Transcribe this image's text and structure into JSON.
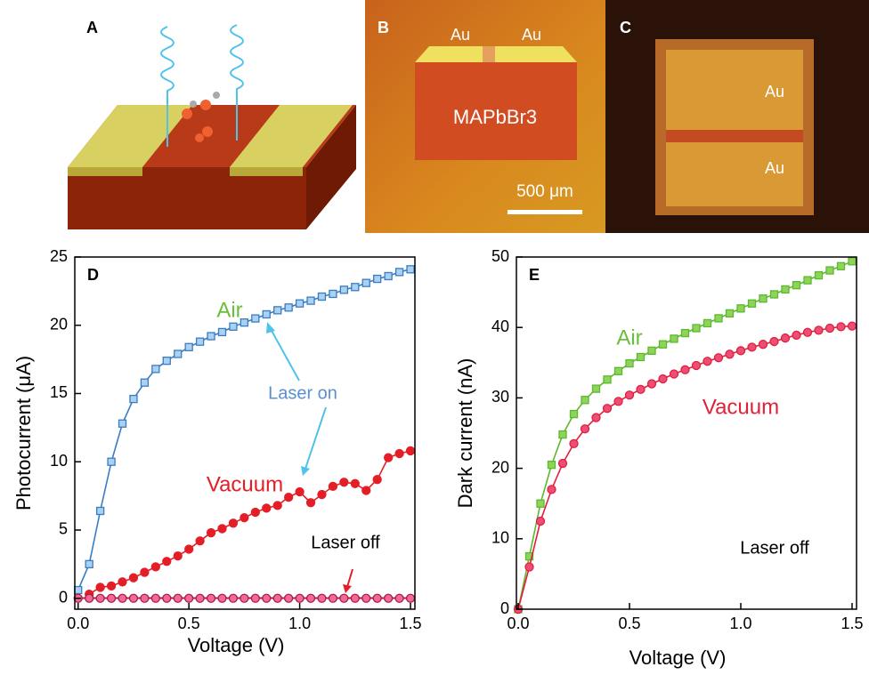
{
  "panels": [
    {
      "label": "A"
    },
    {
      "label": "B",
      "texts": [
        "Au",
        "Au",
        "MAPbBr3",
        "500 μm"
      ]
    },
    {
      "label": "C",
      "texts": [
        "Au",
        "Au"
      ]
    }
  ],
  "chart_data": [
    {
      "type": "line",
      "label": "D",
      "xlabel": "Voltage (V)",
      "ylabel": "Photocurrent (μA)",
      "x": [
        0,
        0.05,
        0.1,
        0.15,
        0.2,
        0.25,
        0.3,
        0.35,
        0.4,
        0.45,
        0.5,
        0.55,
        0.6,
        0.65,
        0.7,
        0.75,
        0.8,
        0.85,
        0.9,
        0.95,
        1,
        1.05,
        1.1,
        1.15,
        1.2,
        1.25,
        1.3,
        1.35,
        1.4,
        1.45,
        1.5
      ],
      "xlim": [
        -0.015,
        1.52
      ],
      "xticks": [
        {
          "value": 0,
          "label": "0.0"
        },
        {
          "value": 0.5,
          "label": "0.5"
        },
        {
          "value": 1,
          "label": "1.0"
        },
        {
          "value": 1.5,
          "label": "1.5"
        }
      ],
      "ylim": [
        -0.8,
        25
      ],
      "yticks": [
        0,
        5,
        10,
        15,
        20,
        25
      ],
      "series": [
        {
          "name": "Air",
          "color": "#3a7cc4",
          "fill": "#a9d2f0",
          "marker": "square",
          "values": [
            0.6,
            2.5,
            6.4,
            10,
            12.8,
            14.6,
            15.8,
            16.8,
            17.4,
            17.9,
            18.4,
            18.8,
            19.2,
            19.5,
            19.9,
            20.2,
            20.5,
            20.8,
            21.1,
            21.3,
            21.6,
            21.8,
            22.1,
            22.3,
            22.6,
            22.8,
            23.1,
            23.4,
            23.6,
            23.9,
            24.1
          ]
        },
        {
          "name": "Vacuum",
          "color": "#e41e26",
          "fill": "#e41e26",
          "marker": "circle",
          "values": [
            null,
            0.3,
            0.8,
            0.9,
            1.2,
            1.5,
            1.9,
            2.3,
            2.7,
            3.1,
            3.6,
            4.2,
            4.8,
            5.1,
            5.5,
            5.9,
            6.3,
            6.6,
            6.8,
            7.4,
            7.8,
            7,
            7.6,
            8.2,
            8.5,
            8.4,
            7.9,
            8.7,
            10.3,
            10.6,
            10.8
          ]
        },
        {
          "color": "#8bc34a",
          "marker": "none",
          "values": [
            0.05,
            0.05,
            0.05,
            0.05,
            0.05,
            0.05,
            0.05,
            0.05,
            0.05,
            0.05,
            0.05,
            0.05,
            0.05,
            0.05,
            0.05,
            0.05,
            0.05,
            0.05,
            0.05,
            0.05,
            0.05,
            0.05,
            0.05,
            0.05,
            0.05,
            0.05,
            0.05,
            0.05,
            0.05,
            0.05,
            0.05
          ]
        },
        {
          "color": "#b0184f",
          "fill": "#f06a95",
          "marker": "circle",
          "values": [
            0,
            0,
            0,
            0,
            0,
            0,
            0,
            0,
            0,
            0,
            0,
            0,
            0,
            0,
            0,
            0,
            0,
            0,
            0,
            0,
            0,
            0,
            0,
            0,
            0,
            0,
            0,
            0,
            0,
            0,
            0
          ]
        }
      ],
      "annotations": [
        "Laser on",
        "Laser off"
      ]
    },
    {
      "type": "line",
      "label": "E",
      "xlabel": "Voltage (V)",
      "ylabel": "Dark current (nA)",
      "x": [
        0,
        0.05,
        0.1,
        0.15,
        0.2,
        0.25,
        0.3,
        0.35,
        0.4,
        0.45,
        0.5,
        0.55,
        0.6,
        0.65,
        0.7,
        0.75,
        0.8,
        0.85,
        0.9,
        0.95,
        1,
        1.05,
        1.1,
        1.15,
        1.2,
        1.25,
        1.3,
        1.35,
        1.4,
        1.45,
        1.5
      ],
      "xlim": [
        -0.008,
        1.52
      ],
      "xticks": [
        {
          "value": 0,
          "label": "0.0"
        },
        {
          "value": 0.5,
          "label": "0.5"
        },
        {
          "value": 1,
          "label": "1.0"
        },
        {
          "value": 1.5,
          "label": "1.5"
        }
      ],
      "ylim": [
        0,
        50
      ],
      "yticks": [
        0,
        10,
        20,
        30,
        40,
        50
      ],
      "series": [
        {
          "name": "Air",
          "color": "#5cb82e",
          "fill": "#8fd45a",
          "marker": "square",
          "values": [
            0,
            7.5,
            15,
            20.5,
            24.8,
            27.7,
            29.7,
            31.3,
            32.6,
            33.8,
            34.9,
            35.8,
            36.7,
            37.6,
            38.4,
            39.2,
            39.9,
            40.6,
            41.3,
            42,
            42.7,
            43.4,
            44.1,
            44.7,
            45.4,
            46,
            46.7,
            47.4,
            48.1,
            48.7,
            49.4
          ]
        },
        {
          "name": "Vacuum",
          "color": "#e0203a",
          "fill": "#ee4d78",
          "marker": "circle",
          "values": [
            0,
            6,
            12.5,
            17,
            20.7,
            23.5,
            25.6,
            27.2,
            28.5,
            29.5,
            30.4,
            31.2,
            32,
            32.7,
            33.4,
            34,
            34.6,
            35.2,
            35.7,
            36.2,
            36.7,
            37.2,
            37.6,
            38,
            38.5,
            38.9,
            39.3,
            39.6,
            39.9,
            40.1,
            40.2
          ]
        }
      ],
      "annotations": [
        "Laser off"
      ]
    }
  ]
}
